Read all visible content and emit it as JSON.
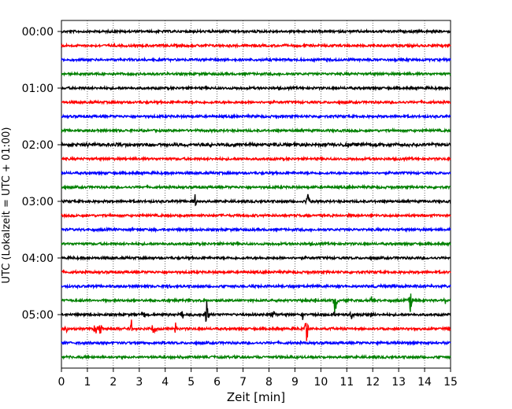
{
  "chart_data": {
    "type": "line",
    "title": "",
    "xlabel": "Zeit  [min]",
    "ylabel": "UTC (Lokalzeit = UTC + 01:00)",
    "xlim": [
      0,
      15
    ],
    "x_ticks": [
      "0",
      "1",
      "2",
      "3",
      "4",
      "5",
      "6",
      "7",
      "8",
      "9",
      "10",
      "11",
      "12",
      "13",
      "14",
      "15"
    ],
    "y_ticks": [
      {
        "label": "00:00",
        "row": 0
      },
      {
        "label": "01:00",
        "row": 4
      },
      {
        "label": "02:00",
        "row": 8
      },
      {
        "label": "03:00",
        "row": 12
      },
      {
        "label": "04:00",
        "row": 16
      },
      {
        "label": "05:00",
        "row": 20
      }
    ],
    "row_interval_minutes": 15,
    "rows": 24,
    "grid": "vertical-dotted",
    "colors": [
      "#000000",
      "#ff0000",
      "#0000ff",
      "#008000"
    ],
    "events": [
      {
        "row": 8,
        "minute": 1.0,
        "amplitude": 0.15
      },
      {
        "row": 12,
        "minute": 5.15,
        "amplitude": 0.55
      },
      {
        "row": 12,
        "minute": 9.5,
        "amplitude": 0.65
      },
      {
        "row": 18,
        "minute": 4.1,
        "amplitude": 0.15
      },
      {
        "row": 19,
        "minute": 9.8,
        "amplitude": 0.25
      },
      {
        "row": 19,
        "minute": 10.55,
        "amplitude": 1.4
      },
      {
        "row": 19,
        "minute": 11.95,
        "amplitude": 0.35
      },
      {
        "row": 19,
        "minute": 13.45,
        "amplitude": 0.95
      },
      {
        "row": 19,
        "minute": 14.8,
        "amplitude": 0.2
      },
      {
        "row": 20,
        "minute": 3.2,
        "amplitude": 0.3
      },
      {
        "row": 20,
        "minute": 4.65,
        "amplitude": 0.45
      },
      {
        "row": 20,
        "minute": 5.6,
        "amplitude": 1.0
      },
      {
        "row": 20,
        "minute": 8.15,
        "amplitude": 0.55
      },
      {
        "row": 20,
        "minute": 9.3,
        "amplitude": 0.3
      },
      {
        "row": 20,
        "minute": 10.5,
        "amplitude": 0.35
      },
      {
        "row": 20,
        "minute": 11.2,
        "amplitude": 0.45
      },
      {
        "row": 20,
        "minute": 11.9,
        "amplitude": 0.55
      },
      {
        "row": 21,
        "minute": 0.2,
        "amplitude": 0.3
      },
      {
        "row": 21,
        "minute": 1.3,
        "amplitude": 0.7
      },
      {
        "row": 21,
        "minute": 1.5,
        "amplitude": 0.7
      },
      {
        "row": 21,
        "minute": 2.7,
        "amplitude": 0.6
      },
      {
        "row": 21,
        "minute": 3.55,
        "amplitude": 0.55
      },
      {
        "row": 21,
        "minute": 4.4,
        "amplitude": 0.4
      },
      {
        "row": 21,
        "minute": 9.45,
        "amplitude": 1.3
      },
      {
        "row": 22,
        "minute": 3.9,
        "amplitude": 0.15
      },
      {
        "row": 22,
        "minute": 12.3,
        "amplitude": 0.15
      }
    ]
  }
}
